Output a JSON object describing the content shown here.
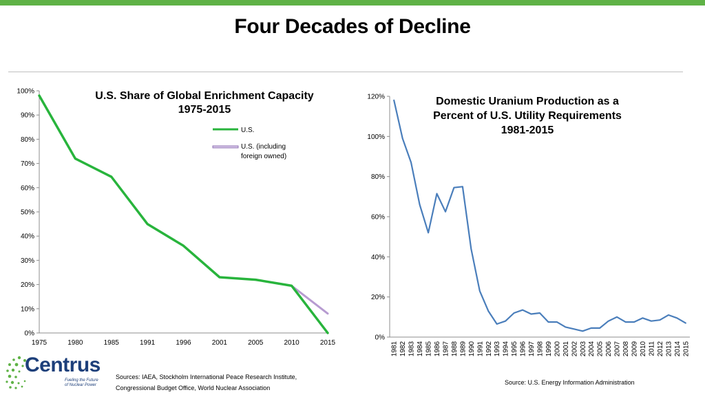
{
  "slide": {
    "title": "Four Decades of Decline",
    "accent_color": "#5fb246"
  },
  "logo": {
    "name": "Centrus",
    "tagline_line1": "Fueling the Future",
    "tagline_line2": "of Nuclear Power",
    "dot_color": "#5fb246",
    "text_color": "#1d3f7a"
  },
  "sources": {
    "left_line1": "Sources:  IAEA, Stockholm International Peace Research Institute,",
    "left_line2": "Congressional Budget Office, World Nuclear Association",
    "right": "Source:  U.S. Energy Information Administration"
  },
  "chart_data": [
    {
      "type": "line",
      "title_line1": "U.S. Share of Global Enrichment Capacity",
      "title_line2": "1975-2015",
      "categories": [
        "1975",
        "1980",
        "1985",
        "1991",
        "1996",
        "2001",
        "2005",
        "2010",
        "2015"
      ],
      "y_ticks": [
        "0%",
        "10%",
        "20%",
        "30%",
        "40%",
        "50%",
        "60%",
        "70%",
        "80%",
        "90%",
        "100%"
      ],
      "ylim": [
        0,
        100
      ],
      "grid": false,
      "legend_position": "top-right",
      "series": [
        {
          "name": "U.S.",
          "color": "#28b43c",
          "values": [
            98,
            72,
            64.5,
            45,
            36,
            23,
            22,
            19.5,
            0
          ]
        },
        {
          "name": "U.S. (including foreign owned)",
          "legend_line1": "U.S. (including",
          "legend_line2": "foreign owned)",
          "color": "#b79bd1",
          "values": [
            null,
            null,
            null,
            null,
            null,
            null,
            null,
            19.5,
            8
          ]
        }
      ]
    },
    {
      "type": "line",
      "title_line1": "Domestic Uranium Production as a",
      "title_line2": "Percent of U.S. Utility Requirements",
      "title_line3": "1981-2015",
      "categories": [
        "1981",
        "1982",
        "1983",
        "1984",
        "1985",
        "1986",
        "1987",
        "1988",
        "1989",
        "1990",
        "1991",
        "1992",
        "1993",
        "1994",
        "1995",
        "1996",
        "1997",
        "1998",
        "1999",
        "2000",
        "2001",
        "2002",
        "2003",
        "2004",
        "2005",
        "2006",
        "2007",
        "2008",
        "2009",
        "2010",
        "2011",
        "2012",
        "2013",
        "2014",
        "2015"
      ],
      "y_ticks": [
        "0%",
        "20%",
        "40%",
        "60%",
        "80%",
        "100%",
        "120%"
      ],
      "ylim": [
        0,
        120
      ],
      "grid": false,
      "series": [
        {
          "color": "#4a7ebb",
          "values": [
            118,
            99,
            87,
            66,
            52,
            71.5,
            62.5,
            74.5,
            75,
            44,
            23,
            13,
            6.5,
            8,
            12,
            13.5,
            11.5,
            12,
            7.5,
            7.5,
            5,
            4,
            3,
            4.5,
            4.5,
            8,
            10,
            7.5,
            7.5,
            9.5,
            8,
            8.5,
            11,
            9.5,
            7
          ]
        }
      ]
    }
  ]
}
